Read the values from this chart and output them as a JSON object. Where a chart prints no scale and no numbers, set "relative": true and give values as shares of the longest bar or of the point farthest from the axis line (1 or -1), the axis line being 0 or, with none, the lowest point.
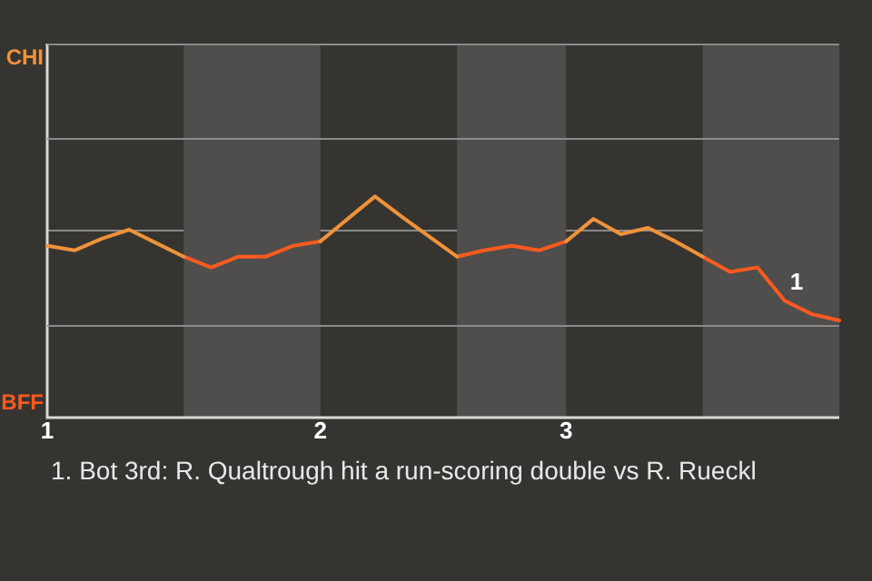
{
  "chart_data": {
    "type": "line",
    "categories": [
      "1",
      null,
      null,
      null,
      null,
      null,
      null,
      null,
      null,
      null,
      "2",
      null,
      null,
      null,
      null,
      null,
      null,
      null,
      null,
      "3",
      null,
      null,
      null,
      null,
      null,
      null,
      null,
      null,
      null,
      null
    ],
    "relative": true,
    "series": [
      {
        "color": "#f0923a",
        "values": [
          -0.17,
          -0.22,
          -0.09,
          0.01,
          -0.14,
          -0.29,
          null,
          null,
          null,
          null,
          -0.12,
          0.13,
          0.38,
          0.15,
          -0.07,
          -0.29,
          null,
          null,
          null,
          -0.12,
          0.13,
          -0.04,
          0.03,
          -0.12,
          -0.29,
          null,
          null,
          null,
          null,
          null
        ]
      },
      {
        "color": "#ff5a1f",
        "values": [
          null,
          null,
          null,
          null,
          null,
          -0.29,
          -0.41,
          -0.29,
          -0.29,
          -0.17,
          -0.12,
          null,
          null,
          null,
          null,
          -0.29,
          -0.22,
          -0.17,
          -0.22,
          -0.12,
          null,
          null,
          null,
          null,
          -0.29,
          -0.46,
          -0.41,
          -0.78,
          -0.93,
          -1
        ]
      }
    ],
    "annotations": [
      "CHI",
      "BFF",
      {
        "text": "1",
        "y": -0.78
      },
      "1. Bot 3rd: R. Qualtrough hit a run-scoring double vs R. Rueckl"
    ]
  }
}
